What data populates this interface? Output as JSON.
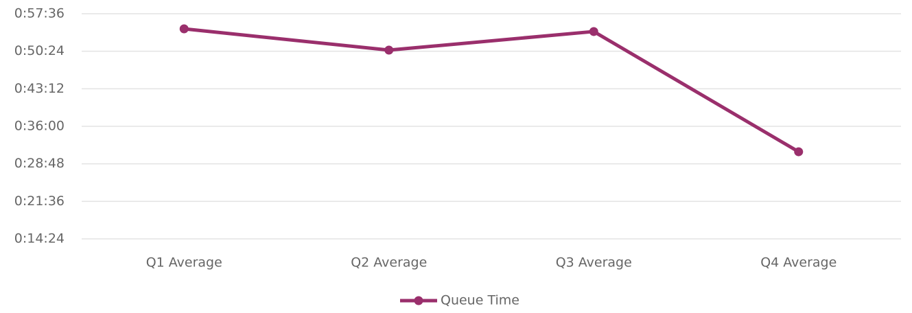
{
  "chart_data": {
    "type": "line",
    "categories": [
      "Q1 Average",
      "Q2 Average",
      "Q3 Average",
      "Q4 Average"
    ],
    "series": [
      {
        "name": "Queue Time",
        "color": "#9a2f6c",
        "values": [
          3282,
          3037,
          3251,
          1867
        ]
      }
    ],
    "ylim": [
      864,
      3456
    ],
    "yticks": [
      {
        "value": 864,
        "label": "0:14:24"
      },
      {
        "value": 1296,
        "label": "0:21:36"
      },
      {
        "value": 1728,
        "label": "0:28:48"
      },
      {
        "value": 2160,
        "label": "0:36:00"
      },
      {
        "value": 2592,
        "label": "0:43:12"
      },
      {
        "value": 3024,
        "label": "0:50:24"
      },
      {
        "value": 3456,
        "label": "0:57:36"
      }
    ],
    "grid": true,
    "legend": "bottom"
  }
}
